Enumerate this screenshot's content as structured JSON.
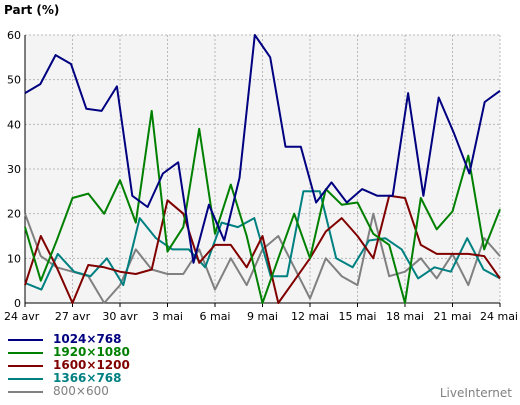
{
  "chart_data": {
    "type": "line",
    "ylabel": "Part (%)",
    "ylim": [
      0,
      60
    ],
    "y_ticks": [
      "0",
      "10",
      "20",
      "30",
      "40",
      "50",
      "60"
    ],
    "x_tick_labels": [
      "24 avr",
      "27 avr",
      "30 avr",
      "3 mai",
      "6 mai",
      "9 mai",
      "12 mai",
      "15 mai",
      "18 mai",
      "21 mai",
      "24 mai"
    ],
    "x_count": 44,
    "grid": true,
    "legend_position": "bottom-left",
    "series": [
      {
        "name": "1024×768",
        "color": "#000080",
        "values": [
          47,
          49,
          55.5,
          53.5,
          43.5,
          43,
          48.5,
          24,
          21.5,
          29,
          31.5,
          9,
          22,
          14,
          28,
          60,
          55,
          35,
          35,
          22.5,
          27,
          22.5,
          25.5,
          24,
          24,
          47,
          24,
          46,
          38,
          29,
          45,
          47.5
        ]
      },
      {
        "name": "1920×1080",
        "color": "#008000",
        "values": [
          17,
          5,
          14,
          23.5,
          24.5,
          20,
          27.5,
          18,
          43,
          11.5,
          17,
          39,
          15.5,
          26.5,
          15,
          0,
          10,
          20,
          10,
          25.5,
          22,
          22.5,
          15.5,
          13,
          0,
          23.5,
          16.5,
          20.5,
          33,
          12,
          21
        ]
      },
      {
        "name": "1600×1200",
        "color": "#800000",
        "values": [
          4,
          15,
          8,
          0,
          8.5,
          8,
          7,
          6.5,
          7.5,
          23,
          20,
          9,
          13,
          13,
          8,
          15,
          0,
          5,
          10,
          16,
          19,
          15,
          10,
          24,
          23.5,
          13,
          11,
          11,
          11,
          10.5,
          5.5
        ]
      },
      {
        "name": "1366×768",
        "color": "#008080",
        "values": [
          4.5,
          3,
          11,
          7,
          6,
          10,
          4,
          19,
          14.5,
          12,
          12,
          8,
          18,
          17,
          19,
          6,
          6,
          25,
          25,
          10,
          8,
          14,
          14.5,
          12,
          5.5,
          8,
          7,
          14.5,
          7.5,
          5.5
        ]
      },
      {
        "name": "800×600",
        "color": "#808080",
        "values": [
          20,
          10.5,
          8,
          7,
          6,
          0,
          4,
          12,
          7.5,
          6.5,
          6.5,
          12,
          3,
          10,
          4,
          12,
          15,
          8,
          1,
          10,
          6,
          4,
          20,
          6,
          7,
          10,
          5.5,
          11,
          4,
          14.5,
          10.5
        ]
      }
    ]
  },
  "credit": "LiveInternet"
}
